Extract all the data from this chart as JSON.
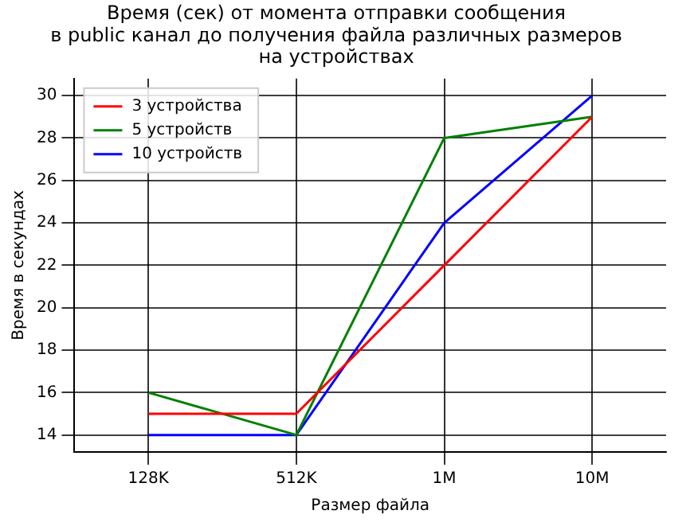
{
  "chart_data": {
    "type": "line",
    "title": "Время (сек) от момента отправки сообщения\nв public канал до получения файла различных размеров\nна устройствах",
    "xlabel": "Размер файла",
    "ylabel": "Время в секундах",
    "categories": [
      "128K",
      "512K",
      "1M",
      "10M"
    ],
    "series": [
      {
        "name": "3 устройства",
        "color": "#ff0000",
        "values": [
          15,
          15,
          22,
          29
        ]
      },
      {
        "name": "5 устройств",
        "color": "#008000",
        "values": [
          16,
          14,
          28,
          29
        ]
      },
      {
        "name": "10 устройств",
        "color": "#0000ff",
        "values": [
          14,
          14,
          24,
          30
        ]
      }
    ],
    "ylim": [
      13.2,
      30.8
    ],
    "yticks": [
      14,
      16,
      18,
      20,
      22,
      24,
      26,
      28,
      30
    ],
    "grid": true,
    "legend": "top left",
    "marker": "none",
    "line_style": "solid"
  }
}
